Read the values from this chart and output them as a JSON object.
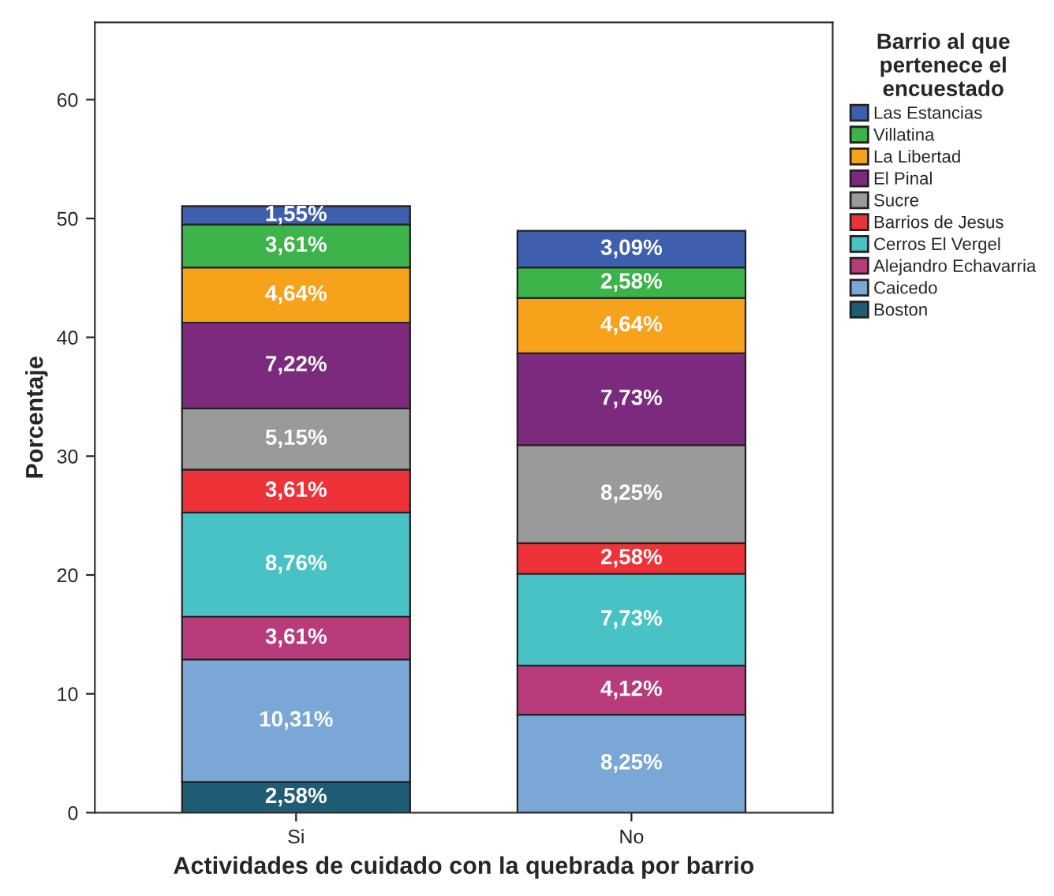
{
  "chart_data": {
    "type": "bar",
    "stacked": true,
    "xlabel": "Actividades de cuidado con la quebrada por barrio",
    "ylabel": "Porcentaje",
    "legend_title": "Barrio al que\npertenece el\nencuestado",
    "legend": "right",
    "categories": [
      "Si",
      "No"
    ],
    "ylim": [
      0,
      66.5
    ],
    "yticks": [
      0,
      10,
      20,
      30,
      40,
      50,
      60
    ],
    "grid": false,
    "series": [
      {
        "name": "Boston",
        "color": "#1f5c76",
        "values": [
          2.58,
          null
        ],
        "value_labels": [
          "2,58%",
          null
        ]
      },
      {
        "name": "Caicedo",
        "color": "#7aa7d6",
        "values": [
          10.31,
          8.25
        ],
        "value_labels": [
          "10,31%",
          "8,25%"
        ]
      },
      {
        "name": "Alejandro Echavarria",
        "color": "#b83c7c",
        "values": [
          3.61,
          4.12
        ],
        "value_labels": [
          "3,61%",
          "4,12%"
        ]
      },
      {
        "name": "Cerros El Vergel",
        "color": "#48c2c5",
        "values": [
          8.76,
          7.73
        ],
        "value_labels": [
          "8,76%",
          "7,73%"
        ]
      },
      {
        "name": "Barrios de Jesus",
        "color": "#ee3338",
        "values": [
          3.61,
          2.58
        ],
        "value_labels": [
          "3,61%",
          "2,58%"
        ]
      },
      {
        "name": "Sucre",
        "color": "#9a9a9a",
        "values": [
          5.15,
          8.25
        ],
        "value_labels": [
          "5,15%",
          "8,25%"
        ]
      },
      {
        "name": "El Pinal",
        "color": "#7b2a7e",
        "values": [
          7.22,
          7.73
        ],
        "value_labels": [
          "7,22%",
          "7,73%"
        ]
      },
      {
        "name": "La Libertad",
        "color": "#f7a21b",
        "values": [
          4.64,
          4.64
        ],
        "value_labels": [
          "4,64%",
          "4,64%"
        ]
      },
      {
        "name": "Villatina",
        "color": "#3cb44a",
        "values": [
          3.61,
          2.58
        ],
        "value_labels": [
          "3,61%",
          "2,58%"
        ]
      },
      {
        "name": "Las Estancias",
        "color": "#3e5fad",
        "values": [
          1.55,
          3.09
        ],
        "value_labels": [
          "1,55%",
          "3,09%"
        ]
      }
    ]
  }
}
